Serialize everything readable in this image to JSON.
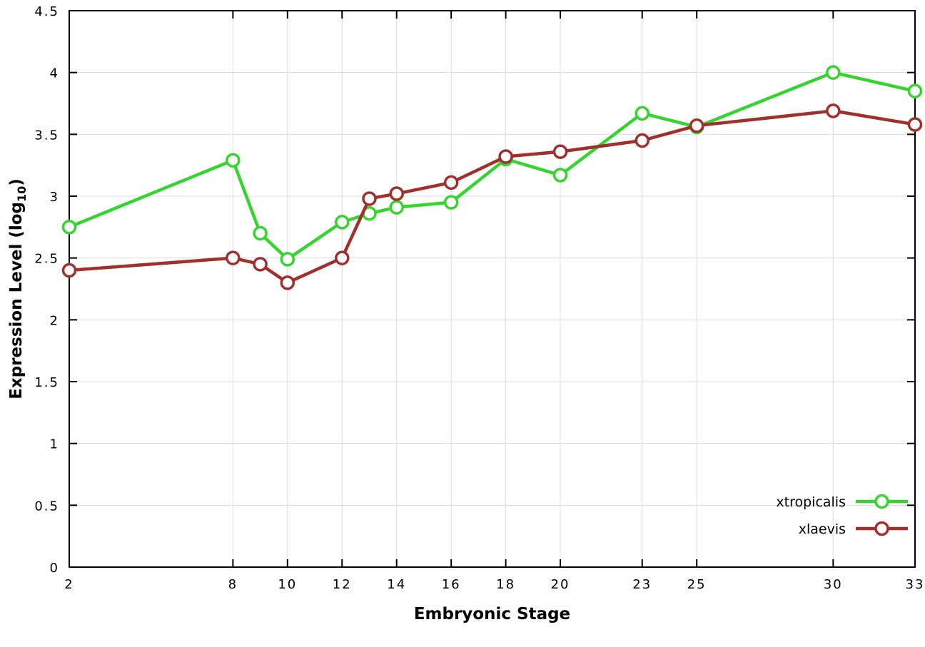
{
  "chart_data": {
    "type": "line",
    "title": "",
    "xlabel": "Embryonic Stage",
    "ylabel": {
      "text": "Expression Level (log",
      "sub": "10",
      "suffix": ")"
    },
    "x": [
      2,
      8,
      9,
      10,
      12,
      13,
      14,
      16,
      18,
      20,
      23,
      25,
      30,
      33
    ],
    "series": [
      {
        "name": "xtropicalis",
        "color": "#36d430",
        "values": [
          2.75,
          3.29,
          2.7,
          2.49,
          2.79,
          2.86,
          2.91,
          2.95,
          3.3,
          3.17,
          3.67,
          3.56,
          4.0,
          3.85
        ]
      },
      {
        "name": "xlaevis",
        "color": "#a0302c",
        "values": [
          2.4,
          2.5,
          2.45,
          2.3,
          2.5,
          2.98,
          3.02,
          3.11,
          3.32,
          3.36,
          3.45,
          3.57,
          3.69,
          3.58
        ]
      }
    ],
    "xlim": [
      2,
      33
    ],
    "ylim": [
      0,
      4.5
    ],
    "xticks": [
      2,
      8,
      10,
      12,
      14,
      16,
      18,
      20,
      23,
      25,
      30,
      33
    ],
    "xtick_labels": [
      "2",
      "8",
      "10",
      "12",
      "14",
      "16",
      "18",
      "20",
      "23",
      "25",
      "30",
      "33"
    ],
    "yticks": [
      0,
      0.5,
      1,
      1.5,
      2,
      2.5,
      3,
      3.5,
      4,
      4.5
    ],
    "ytick_labels": [
      "0",
      "0.5",
      "1",
      "1.5",
      "2",
      "2.5",
      "3",
      "3.5",
      "4",
      "4.5"
    ],
    "grid": true,
    "legend_position": "bottom-right",
    "marker": "open-circle"
  },
  "colors": {
    "background": "#ffffff",
    "axis": "#000000",
    "grid": "#dcdcdc"
  }
}
